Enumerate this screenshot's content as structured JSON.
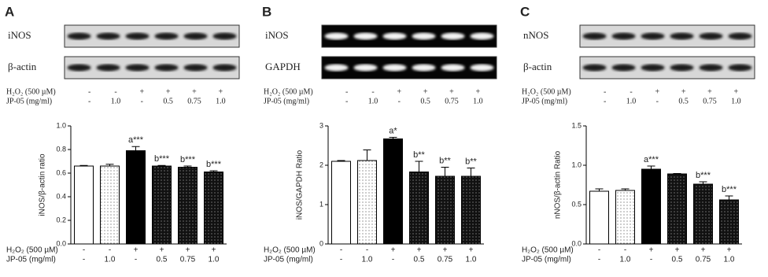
{
  "chart_data": [
    {
      "type": "bar",
      "panel_label": "A",
      "blots": [
        "iNOS",
        "β-actin"
      ],
      "treatments": [
        {
          "label": "H₂O₂ (500 µM)",
          "values": [
            "-",
            "-",
            "+",
            "+",
            "+",
            "+"
          ]
        },
        {
          "label": "JP-05 (mg/ml)",
          "values": [
            "-",
            "1.0",
            "-",
            "0.5",
            "0.75",
            "1.0"
          ]
        }
      ],
      "y_label": "iNOS/β-actin ratio",
      "ylim": [
        0,
        1.0
      ],
      "yticks": [
        {
          "value": 0,
          "label": "0.0"
        },
        0.2,
        0.4,
        0.6,
        0.8,
        {
          "value": 1,
          "label": "1.0"
        }
      ],
      "values": [
        0.66,
        0.66,
        0.79,
        0.66,
        0.65,
        0.61
      ],
      "errors": [
        0.005,
        0.015,
        0.035,
        0.005,
        0.01,
        0.01
      ],
      "annotations": [
        null,
        null,
        "a***",
        "b***",
        "b***",
        "b***"
      ],
      "fills": [
        "white",
        "dots",
        "black",
        "darkdots",
        "darkdots",
        "darkdots"
      ]
    },
    {
      "type": "bar",
      "panel_label": "B",
      "blots": [
        "iNOS",
        "GAPDH"
      ],
      "treatments": [
        {
          "label": "H₂O₂ (500 µM)",
          "values": [
            "-",
            "-",
            "+",
            "+",
            "+",
            "+"
          ]
        },
        {
          "label": "JP-05 (mg/ml)",
          "values": [
            "-",
            "1.0",
            "-",
            "0.5",
            "0.75",
            "1.0"
          ]
        }
      ],
      "y_label": "iNOS/GAPDH Ratio",
      "ylim": [
        0,
        3
      ],
      "yticks": [
        0,
        1,
        2,
        3
      ],
      "values": [
        2.1,
        2.12,
        2.67,
        1.83,
        1.72,
        1.72
      ],
      "errors": [
        0.02,
        0.27,
        0.04,
        0.27,
        0.23,
        0.21
      ],
      "annotations": [
        null,
        null,
        "a*",
        "b**",
        "b**",
        "b**"
      ],
      "fills": [
        "white",
        "dots",
        "black",
        "darkdots",
        "darkdots",
        "darkdots"
      ]
    },
    {
      "type": "bar",
      "panel_label": "C",
      "blots": [
        "nNOS",
        "β-actin"
      ],
      "treatments": [
        {
          "label": "H₂O₂ (500 µM)",
          "values": [
            "-",
            "-",
            "+",
            "+",
            "+",
            "+"
          ]
        },
        {
          "label": "JP-05 (mg/ml)",
          "values": [
            "-",
            "1.0",
            "-",
            "0.5",
            "0.75",
            "1.0"
          ]
        }
      ],
      "y_label": "nNOS/β-actin Ratio",
      "ylim": [
        0,
        1.5
      ],
      "yticks": [
        {
          "value": 0,
          "label": "0.0"
        },
        0.5,
        {
          "value": 1,
          "label": "1.0"
        },
        1.5
      ],
      "values": [
        0.67,
        0.68,
        0.95,
        0.89,
        0.76,
        0.56
      ],
      "errors": [
        0.03,
        0.02,
        0.04,
        0.005,
        0.03,
        0.05
      ],
      "annotations": [
        null,
        null,
        "a***",
        null,
        "b***",
        "b***"
      ],
      "fills": [
        "white",
        "dots",
        "black",
        "darkdots",
        "darkdots",
        "darkdots"
      ]
    }
  ]
}
